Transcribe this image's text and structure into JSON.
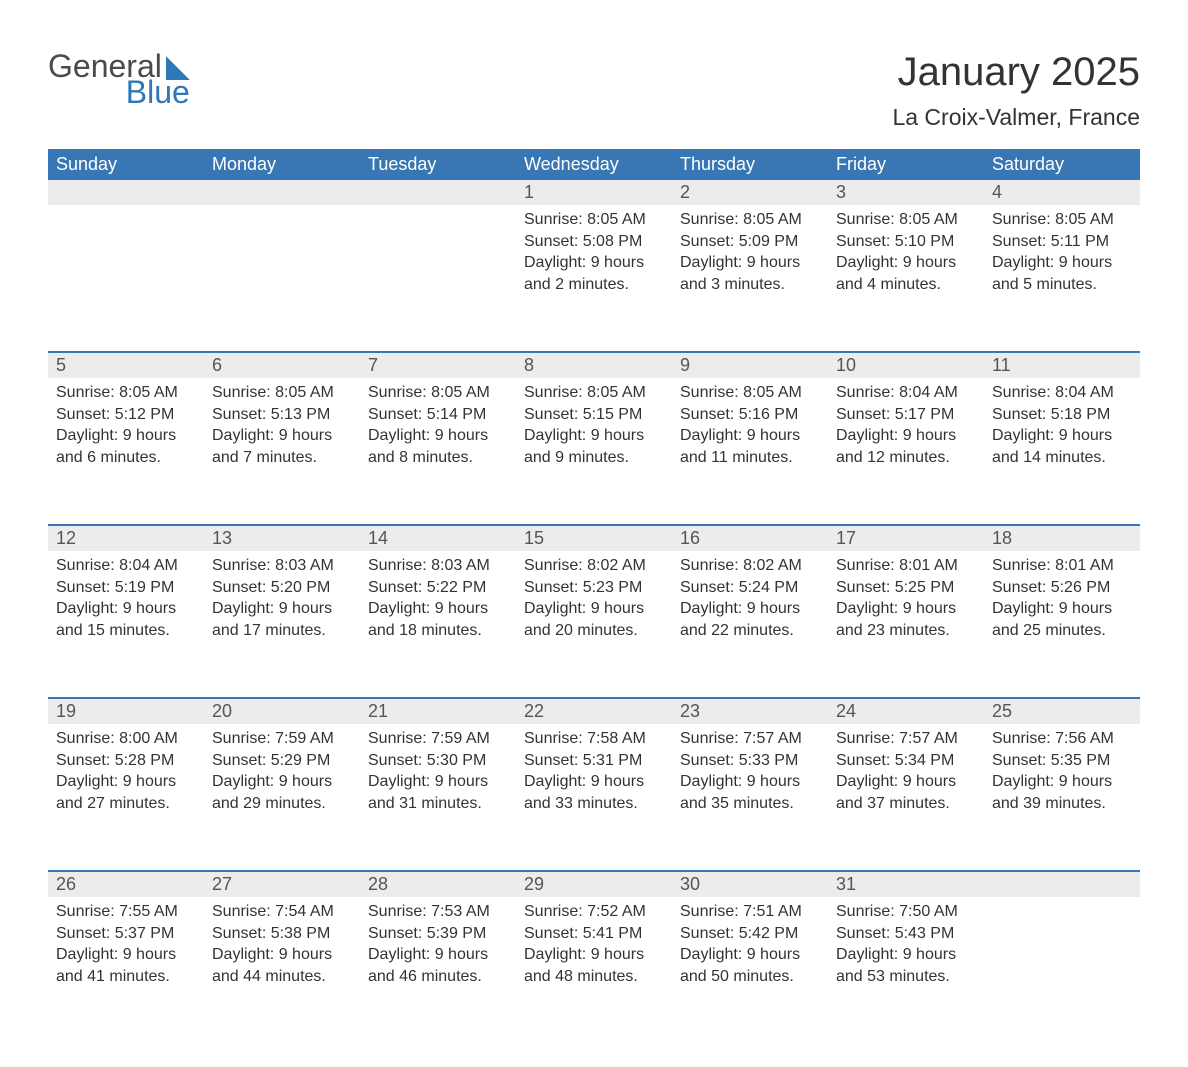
{
  "logo": {
    "line1": "General",
    "line2": "Blue"
  },
  "title": "January 2025",
  "subtitle": "La Croix-Valmer, France",
  "colors": {
    "header_bg": "#3877b3",
    "header_text": "#ffffff",
    "daynum_bg": "#ececec",
    "week_border": "#3877b3",
    "body_text": "#333333",
    "logo_gray": "#4a4a4a",
    "logo_blue": "#2f78b7"
  },
  "day_headers": [
    "Sunday",
    "Monday",
    "Tuesday",
    "Wednesday",
    "Thursday",
    "Friday",
    "Saturday"
  ],
  "weeks": [
    [
      {
        "day": "",
        "sunrise": "",
        "sunset": "",
        "daylight1": "",
        "daylight2": ""
      },
      {
        "day": "",
        "sunrise": "",
        "sunset": "",
        "daylight1": "",
        "daylight2": ""
      },
      {
        "day": "",
        "sunrise": "",
        "sunset": "",
        "daylight1": "",
        "daylight2": ""
      },
      {
        "day": "1",
        "sunrise": "Sunrise: 8:05 AM",
        "sunset": "Sunset: 5:08 PM",
        "daylight1": "Daylight: 9 hours",
        "daylight2": "and 2 minutes."
      },
      {
        "day": "2",
        "sunrise": "Sunrise: 8:05 AM",
        "sunset": "Sunset: 5:09 PM",
        "daylight1": "Daylight: 9 hours",
        "daylight2": "and 3 minutes."
      },
      {
        "day": "3",
        "sunrise": "Sunrise: 8:05 AM",
        "sunset": "Sunset: 5:10 PM",
        "daylight1": "Daylight: 9 hours",
        "daylight2": "and 4 minutes."
      },
      {
        "day": "4",
        "sunrise": "Sunrise: 8:05 AM",
        "sunset": "Sunset: 5:11 PM",
        "daylight1": "Daylight: 9 hours",
        "daylight2": "and 5 minutes."
      }
    ],
    [
      {
        "day": "5",
        "sunrise": "Sunrise: 8:05 AM",
        "sunset": "Sunset: 5:12 PM",
        "daylight1": "Daylight: 9 hours",
        "daylight2": "and 6 minutes."
      },
      {
        "day": "6",
        "sunrise": "Sunrise: 8:05 AM",
        "sunset": "Sunset: 5:13 PM",
        "daylight1": "Daylight: 9 hours",
        "daylight2": "and 7 minutes."
      },
      {
        "day": "7",
        "sunrise": "Sunrise: 8:05 AM",
        "sunset": "Sunset: 5:14 PM",
        "daylight1": "Daylight: 9 hours",
        "daylight2": "and 8 minutes."
      },
      {
        "day": "8",
        "sunrise": "Sunrise: 8:05 AM",
        "sunset": "Sunset: 5:15 PM",
        "daylight1": "Daylight: 9 hours",
        "daylight2": "and 9 minutes."
      },
      {
        "day": "9",
        "sunrise": "Sunrise: 8:05 AM",
        "sunset": "Sunset: 5:16 PM",
        "daylight1": "Daylight: 9 hours",
        "daylight2": "and 11 minutes."
      },
      {
        "day": "10",
        "sunrise": "Sunrise: 8:04 AM",
        "sunset": "Sunset: 5:17 PM",
        "daylight1": "Daylight: 9 hours",
        "daylight2": "and 12 minutes."
      },
      {
        "day": "11",
        "sunrise": "Sunrise: 8:04 AM",
        "sunset": "Sunset: 5:18 PM",
        "daylight1": "Daylight: 9 hours",
        "daylight2": "and 14 minutes."
      }
    ],
    [
      {
        "day": "12",
        "sunrise": "Sunrise: 8:04 AM",
        "sunset": "Sunset: 5:19 PM",
        "daylight1": "Daylight: 9 hours",
        "daylight2": "and 15 minutes."
      },
      {
        "day": "13",
        "sunrise": "Sunrise: 8:03 AM",
        "sunset": "Sunset: 5:20 PM",
        "daylight1": "Daylight: 9 hours",
        "daylight2": "and 17 minutes."
      },
      {
        "day": "14",
        "sunrise": "Sunrise: 8:03 AM",
        "sunset": "Sunset: 5:22 PM",
        "daylight1": "Daylight: 9 hours",
        "daylight2": "and 18 minutes."
      },
      {
        "day": "15",
        "sunrise": "Sunrise: 8:02 AM",
        "sunset": "Sunset: 5:23 PM",
        "daylight1": "Daylight: 9 hours",
        "daylight2": "and 20 minutes."
      },
      {
        "day": "16",
        "sunrise": "Sunrise: 8:02 AM",
        "sunset": "Sunset: 5:24 PM",
        "daylight1": "Daylight: 9 hours",
        "daylight2": "and 22 minutes."
      },
      {
        "day": "17",
        "sunrise": "Sunrise: 8:01 AM",
        "sunset": "Sunset: 5:25 PM",
        "daylight1": "Daylight: 9 hours",
        "daylight2": "and 23 minutes."
      },
      {
        "day": "18",
        "sunrise": "Sunrise: 8:01 AM",
        "sunset": "Sunset: 5:26 PM",
        "daylight1": "Daylight: 9 hours",
        "daylight2": "and 25 minutes."
      }
    ],
    [
      {
        "day": "19",
        "sunrise": "Sunrise: 8:00 AM",
        "sunset": "Sunset: 5:28 PM",
        "daylight1": "Daylight: 9 hours",
        "daylight2": "and 27 minutes."
      },
      {
        "day": "20",
        "sunrise": "Sunrise: 7:59 AM",
        "sunset": "Sunset: 5:29 PM",
        "daylight1": "Daylight: 9 hours",
        "daylight2": "and 29 minutes."
      },
      {
        "day": "21",
        "sunrise": "Sunrise: 7:59 AM",
        "sunset": "Sunset: 5:30 PM",
        "daylight1": "Daylight: 9 hours",
        "daylight2": "and 31 minutes."
      },
      {
        "day": "22",
        "sunrise": "Sunrise: 7:58 AM",
        "sunset": "Sunset: 5:31 PM",
        "daylight1": "Daylight: 9 hours",
        "daylight2": "and 33 minutes."
      },
      {
        "day": "23",
        "sunrise": "Sunrise: 7:57 AM",
        "sunset": "Sunset: 5:33 PM",
        "daylight1": "Daylight: 9 hours",
        "daylight2": "and 35 minutes."
      },
      {
        "day": "24",
        "sunrise": "Sunrise: 7:57 AM",
        "sunset": "Sunset: 5:34 PM",
        "daylight1": "Daylight: 9 hours",
        "daylight2": "and 37 minutes."
      },
      {
        "day": "25",
        "sunrise": "Sunrise: 7:56 AM",
        "sunset": "Sunset: 5:35 PM",
        "daylight1": "Daylight: 9 hours",
        "daylight2": "and 39 minutes."
      }
    ],
    [
      {
        "day": "26",
        "sunrise": "Sunrise: 7:55 AM",
        "sunset": "Sunset: 5:37 PM",
        "daylight1": "Daylight: 9 hours",
        "daylight2": "and 41 minutes."
      },
      {
        "day": "27",
        "sunrise": "Sunrise: 7:54 AM",
        "sunset": "Sunset: 5:38 PM",
        "daylight1": "Daylight: 9 hours",
        "daylight2": "and 44 minutes."
      },
      {
        "day": "28",
        "sunrise": "Sunrise: 7:53 AM",
        "sunset": "Sunset: 5:39 PM",
        "daylight1": "Daylight: 9 hours",
        "daylight2": "and 46 minutes."
      },
      {
        "day": "29",
        "sunrise": "Sunrise: 7:52 AM",
        "sunset": "Sunset: 5:41 PM",
        "daylight1": "Daylight: 9 hours",
        "daylight2": "and 48 minutes."
      },
      {
        "day": "30",
        "sunrise": "Sunrise: 7:51 AM",
        "sunset": "Sunset: 5:42 PM",
        "daylight1": "Daylight: 9 hours",
        "daylight2": "and 50 minutes."
      },
      {
        "day": "31",
        "sunrise": "Sunrise: 7:50 AM",
        "sunset": "Sunset: 5:43 PM",
        "daylight1": "Daylight: 9 hours",
        "daylight2": "and 53 minutes."
      },
      {
        "day": "",
        "sunrise": "",
        "sunset": "",
        "daylight1": "",
        "daylight2": ""
      }
    ]
  ]
}
